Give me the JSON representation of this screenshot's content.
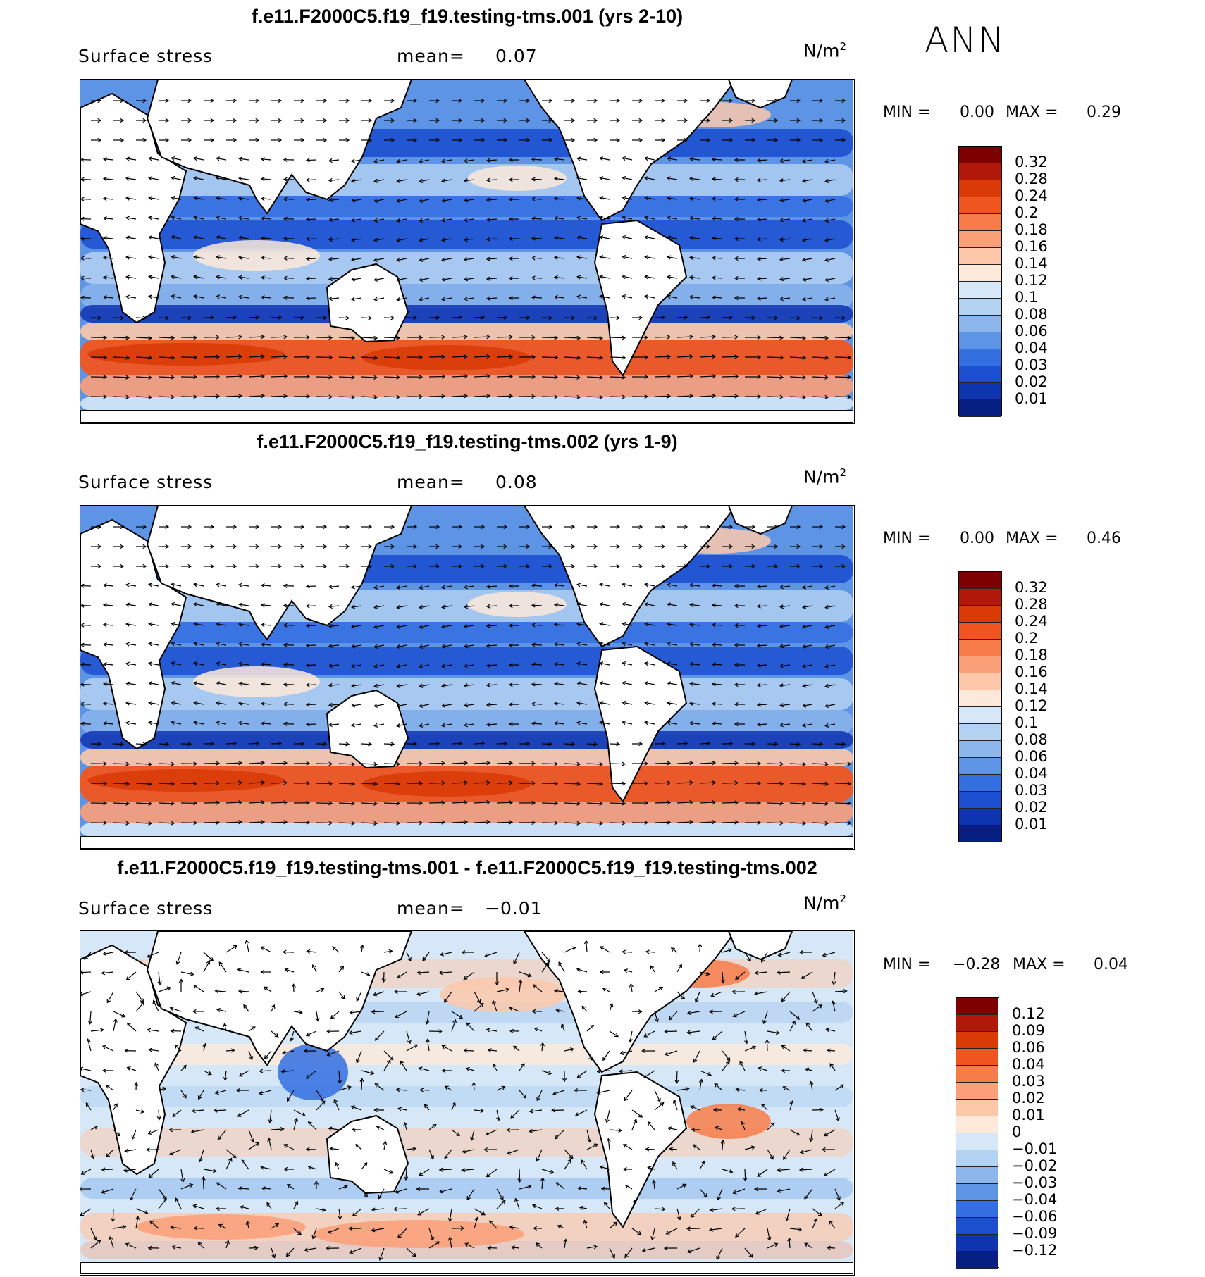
{
  "header": {
    "season": "ANN"
  },
  "panels": [
    {
      "id": "p1",
      "title": "f.e11.F2000C5.f19_f19.testing-tms.001 (yrs 2-10)",
      "variable": "Surface stress",
      "mean_label": "mean=",
      "mean_value": "0.07",
      "units": "N/m",
      "units_exp": "2",
      "min_label": "MIN =",
      "min_value": "0.00",
      "max_label": "MAX =",
      "max_value": "0.29",
      "colorbar": {
        "labels": [
          "0.32",
          "0.28",
          "0.24",
          "0.2",
          "0.18",
          "0.16",
          "0.14",
          "0.12",
          "0.1",
          "0.08",
          "0.06",
          "0.04",
          "0.03",
          "0.02",
          "0.01"
        ],
        "colors": [
          "#7f0000",
          "#b2180a",
          "#d93a06",
          "#f0551f",
          "#f77c4a",
          "#fb9f78",
          "#fdc8aa",
          "#fde9d9",
          "#d6e8f8",
          "#b4d2f2",
          "#8cb6ec",
          "#5e94e6",
          "#336fe0",
          "#1c4fd0",
          "#0f34b0",
          "#071e82"
        ]
      }
    },
    {
      "id": "p2",
      "title": "f.e11.F2000C5.f19_f19.testing-tms.002 (yrs 1-9)",
      "variable": "Surface stress",
      "mean_label": "mean=",
      "mean_value": "0.08",
      "units": "N/m",
      "units_exp": "2",
      "min_label": "MIN =",
      "min_value": "0.00",
      "max_label": "MAX =",
      "max_value": "0.46",
      "colorbar": {
        "labels": [
          "0.32",
          "0.28",
          "0.24",
          "0.2",
          "0.18",
          "0.16",
          "0.14",
          "0.12",
          "0.1",
          "0.08",
          "0.06",
          "0.04",
          "0.03",
          "0.02",
          "0.01"
        ],
        "colors": [
          "#7f0000",
          "#b2180a",
          "#d93a06",
          "#f0551f",
          "#f77c4a",
          "#fb9f78",
          "#fdc8aa",
          "#fde9d9",
          "#d6e8f8",
          "#b4d2f2",
          "#8cb6ec",
          "#5e94e6",
          "#336fe0",
          "#1c4fd0",
          "#0f34b0",
          "#071e82"
        ]
      }
    },
    {
      "id": "p3",
      "title": "f.e11.F2000C5.f19_f19.testing-tms.001 - f.e11.F2000C5.f19_f19.testing-tms.002",
      "variable": "Surface stress",
      "mean_label": "mean=",
      "mean_value": "−0.01",
      "units": "N/m",
      "units_exp": "2",
      "min_label": "MIN =",
      "min_value": "−0.28",
      "max_label": "MAX =",
      "max_value": "0.04",
      "colorbar": {
        "labels": [
          "0.12",
          "0.09",
          "0.06",
          "0.04",
          "0.03",
          "0.02",
          "0.01",
          "0",
          "−0.01",
          "−0.02",
          "−0.03",
          "−0.04",
          "−0.06",
          "−0.09",
          "−0.12"
        ],
        "colors": [
          "#7f0000",
          "#b2180a",
          "#d93a06",
          "#f0551f",
          "#f77c4a",
          "#fb9f78",
          "#fdc8aa",
          "#fde9d9",
          "#d6e8f8",
          "#b4d2f2",
          "#8cb6ec",
          "#5e94e6",
          "#336fe0",
          "#1c4fd0",
          "#0f34b0",
          "#071e82"
        ]
      }
    }
  ]
}
